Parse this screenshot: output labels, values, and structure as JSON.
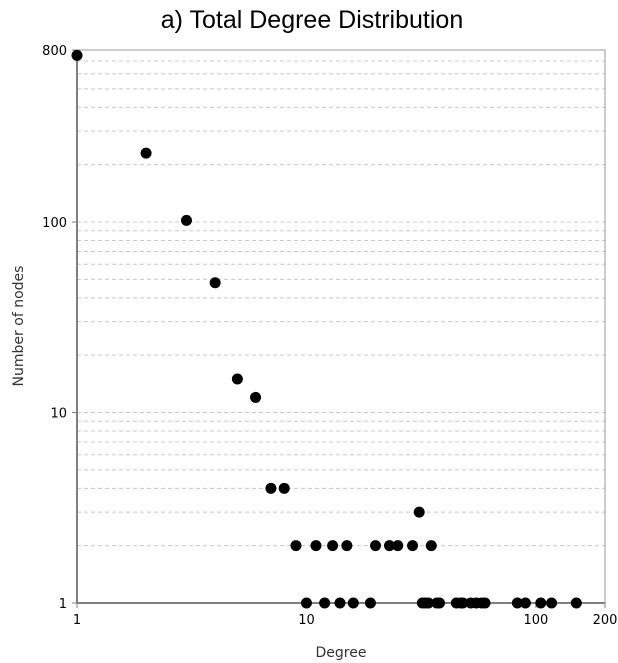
{
  "chart_data": {
    "type": "scatter",
    "title": "a) Total Degree Distribution",
    "xlabel": "Degree",
    "ylabel": "Number of nodes",
    "xscale": "log",
    "yscale": "log",
    "xlim": [
      1,
      200
    ],
    "ylim": [
      1,
      800
    ],
    "x_ticks": [
      "1",
      "10",
      "100",
      "200"
    ],
    "y_ticks": [
      "1",
      "10",
      "100",
      "800"
    ],
    "grid": "horizontal dashed",
    "marker_color": "#000000",
    "points": [
      {
        "x": 1,
        "y": 750
      },
      {
        "x": 2,
        "y": 230
      },
      {
        "x": 3,
        "y": 102
      },
      {
        "x": 4,
        "y": 48
      },
      {
        "x": 5,
        "y": 15
      },
      {
        "x": 6,
        "y": 12
      },
      {
        "x": 7,
        "y": 4
      },
      {
        "x": 8,
        "y": 4
      },
      {
        "x": 9,
        "y": 2
      },
      {
        "x": 10,
        "y": 1
      },
      {
        "x": 11,
        "y": 2
      },
      {
        "x": 12,
        "y": 1
      },
      {
        "x": 13,
        "y": 2
      },
      {
        "x": 14,
        "y": 1
      },
      {
        "x": 15,
        "y": 2
      },
      {
        "x": 16,
        "y": 1
      },
      {
        "x": 19,
        "y": 1
      },
      {
        "x": 20,
        "y": 2
      },
      {
        "x": 23,
        "y": 2
      },
      {
        "x": 25,
        "y": 2
      },
      {
        "x": 29,
        "y": 2
      },
      {
        "x": 31,
        "y": 3
      },
      {
        "x": 32,
        "y": 1
      },
      {
        "x": 33,
        "y": 1
      },
      {
        "x": 34,
        "y": 1
      },
      {
        "x": 35,
        "y": 2
      },
      {
        "x": 37,
        "y": 1
      },
      {
        "x": 38,
        "y": 1
      },
      {
        "x": 45,
        "y": 1
      },
      {
        "x": 47,
        "y": 1
      },
      {
        "x": 48,
        "y": 1
      },
      {
        "x": 52,
        "y": 1
      },
      {
        "x": 55,
        "y": 1
      },
      {
        "x": 58,
        "y": 1
      },
      {
        "x": 60,
        "y": 1
      },
      {
        "x": 83,
        "y": 1
      },
      {
        "x": 90,
        "y": 1
      },
      {
        "x": 105,
        "y": 1
      },
      {
        "x": 117,
        "y": 1
      },
      {
        "x": 150,
        "y": 1
      }
    ]
  }
}
